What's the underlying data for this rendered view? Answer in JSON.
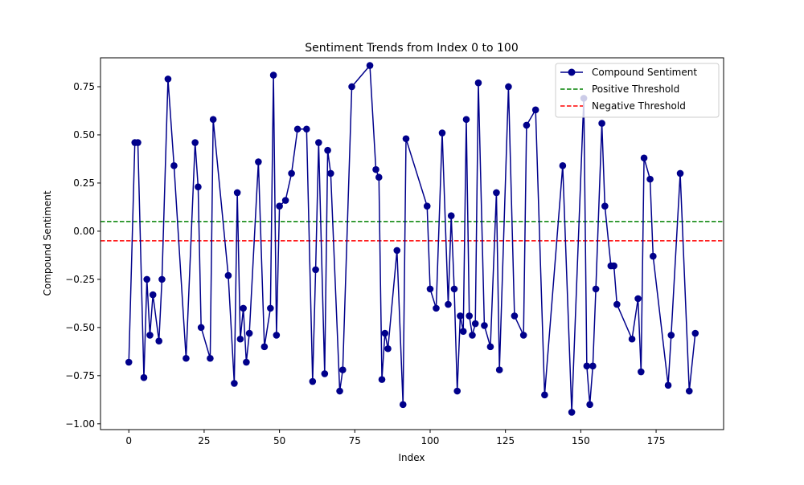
{
  "chart_data": {
    "type": "line",
    "title": "Sentiment Trends from Index 0 to 100",
    "xlabel": "Index",
    "ylabel": "Compound Sentiment",
    "xlim": [
      -9.4,
      197.4
    ],
    "ylim": [
      -1.03,
      0.9
    ],
    "xticks": [
      0,
      25,
      50,
      75,
      100,
      125,
      150,
      175
    ],
    "yticks": [
      -1.0,
      -0.75,
      -0.5,
      -0.25,
      0.0,
      0.25,
      0.5,
      0.75
    ],
    "ytick_labels": [
      "−1.00",
      "−0.75",
      "−0.50",
      "−0.25",
      "0.00",
      "0.25",
      "0.50",
      "0.75"
    ],
    "xtick_labels": [
      "0",
      "25",
      "50",
      "75",
      "100",
      "125",
      "150",
      "175"
    ],
    "grid": false,
    "legend_position": "top-right",
    "colors": {
      "series": "#00008b",
      "positive": "#008000",
      "negative": "#ff0000"
    },
    "thresholds": [
      {
        "name": "Positive Threshold",
        "value": 0.05,
        "color": "#008000"
      },
      {
        "name": "Negative Threshold",
        "value": -0.05,
        "color": "#ff0000"
      }
    ],
    "series": [
      {
        "name": "Compound Sentiment",
        "x": [
          0,
          2,
          3,
          5,
          6,
          7,
          8,
          10,
          11,
          13,
          15,
          19,
          22,
          23,
          24,
          27,
          28,
          33,
          35,
          36,
          37,
          38,
          39,
          40,
          43,
          45,
          47,
          48,
          49,
          50,
          52,
          54,
          56,
          59,
          61,
          62,
          63,
          65,
          66,
          67,
          70,
          71,
          74,
          80,
          82,
          83,
          84,
          85,
          86,
          89,
          91,
          92,
          99,
          100,
          102,
          104,
          106,
          107,
          108,
          109,
          110,
          111,
          112,
          113,
          114,
          115,
          116,
          118,
          120,
          122,
          123,
          126,
          128,
          131,
          132,
          135,
          138,
          144,
          147,
          151,
          152,
          153,
          154,
          155,
          157,
          158,
          160,
          161,
          162,
          167,
          169,
          170,
          171,
          173,
          174,
          179,
          180,
          183,
          186,
          188
        ],
        "y": [
          -0.68,
          0.46,
          0.46,
          -0.76,
          -0.25,
          -0.54,
          -0.33,
          -0.57,
          -0.25,
          0.79,
          0.34,
          -0.66,
          0.46,
          0.23,
          -0.5,
          -0.66,
          0.58,
          -0.23,
          -0.79,
          0.2,
          -0.56,
          -0.4,
          -0.68,
          -0.53,
          0.36,
          -0.6,
          -0.4,
          0.81,
          -0.54,
          0.13,
          0.16,
          0.3,
          0.53,
          0.53,
          -0.78,
          -0.2,
          0.46,
          -0.74,
          0.42,
          0.3,
          -0.83,
          -0.72,
          0.75,
          0.86,
          0.32,
          0.28,
          -0.77,
          -0.53,
          -0.61,
          -0.1,
          -0.9,
          0.48,
          0.13,
          -0.3,
          -0.4,
          0.51,
          -0.38,
          0.08,
          -0.3,
          -0.83,
          -0.44,
          -0.52,
          0.58,
          -0.44,
          -0.54,
          -0.48,
          0.77,
          -0.49,
          -0.6,
          0.2,
          -0.72,
          0.75,
          -0.44,
          -0.54,
          0.55,
          0.63,
          -0.85,
          0.34,
          -0.94,
          0.69,
          -0.7,
          -0.9,
          -0.7,
          -0.3,
          0.56,
          0.13,
          -0.18,
          -0.18,
          -0.38,
          -0.56,
          -0.35,
          -0.73,
          0.38,
          0.27,
          -0.13,
          -0.8,
          -0.54,
          0.3,
          -0.83,
          -0.53
        ]
      }
    ]
  }
}
